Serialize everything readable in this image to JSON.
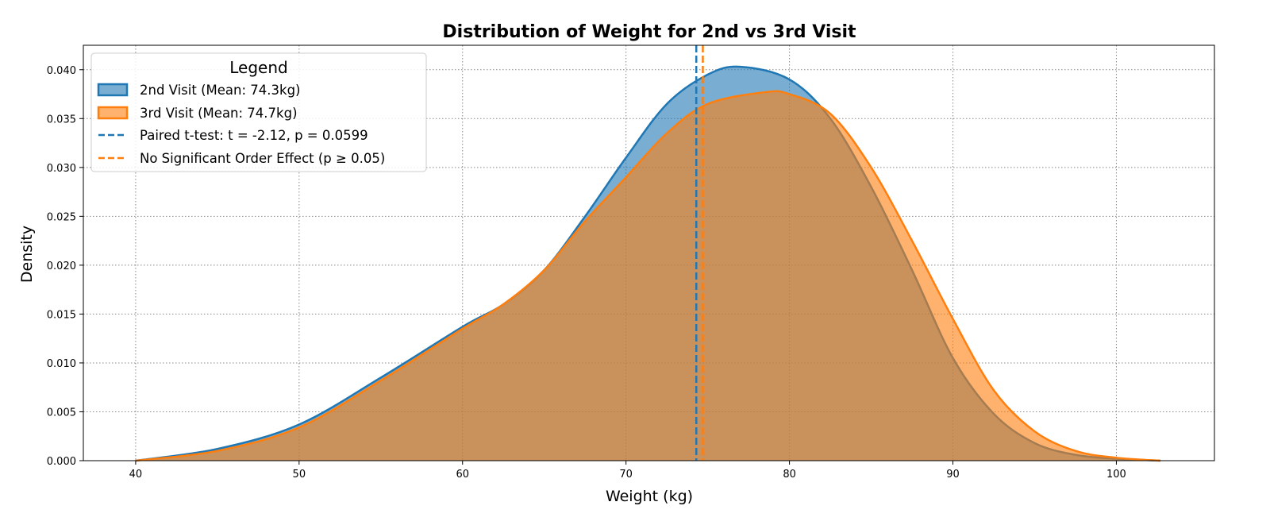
{
  "chart_data": {
    "type": "area",
    "title": "Distribution of Weight for 2nd vs 3rd Visit",
    "xlabel": "Weight (kg)",
    "ylabel": "Density",
    "xlim": [
      36.8,
      106
    ],
    "ylim": [
      0,
      0.0425
    ],
    "xticks": [
      "40",
      "50",
      "60",
      "70",
      "80",
      "90",
      "100"
    ],
    "xtick_values": [
      40,
      50,
      60,
      70,
      80,
      90,
      100
    ],
    "yticks": [
      "0.000",
      "0.005",
      "0.010",
      "0.015",
      "0.020",
      "0.025",
      "0.030",
      "0.035",
      "0.040"
    ],
    "ytick_values": [
      0,
      0.005,
      0.01,
      0.015,
      0.02,
      0.025,
      0.03,
      0.035,
      0.04
    ],
    "grid": true,
    "legend": {
      "title": "Legend",
      "placement": "top-left",
      "entries": [
        "2nd Visit (Mean: 74.3kg)",
        "3rd Visit (Mean: 74.7kg)",
        "Paired t-test: t = -2.12, p = 0.0599",
        "No Significant Order Effect (p ≥ 0.05)"
      ]
    },
    "series": [
      {
        "name": "2nd Visit (Mean: 74.3kg)",
        "color": "#1f77b4",
        "mean": 74.3,
        "x": [
          40,
          45,
          50,
          55,
          60,
          62.5,
          65,
          67.5,
          70,
          72.5,
          75,
          77,
          80,
          82.5,
          85,
          87.5,
          90,
          92.5,
          95,
          97.5,
          100,
          102.7
        ],
        "y": [
          0.0,
          0.0012,
          0.0037,
          0.0085,
          0.0137,
          0.016,
          0.0195,
          0.025,
          0.031,
          0.0365,
          0.0395,
          0.0403,
          0.039,
          0.035,
          0.028,
          0.0195,
          0.0105,
          0.0048,
          0.0018,
          0.0006,
          0.0002,
          0.0
        ]
      },
      {
        "name": "3rd Visit (Mean: 74.7kg)",
        "color": "#ff7f0e",
        "mean": 74.7,
        "x": [
          40,
          45,
          50,
          55,
          60,
          62.5,
          65,
          67.5,
          70,
          72.5,
          75,
          78.5,
          80,
          82.5,
          85,
          87.5,
          90,
          92.5,
          95,
          97.5,
          100,
          102.7
        ],
        "y": [
          0.0,
          0.001,
          0.0034,
          0.0082,
          0.0135,
          0.016,
          0.0195,
          0.0245,
          0.029,
          0.0335,
          0.0365,
          0.0377,
          0.0375,
          0.0355,
          0.03,
          0.0225,
          0.0145,
          0.0072,
          0.003,
          0.001,
          0.0003,
          0.0
        ]
      }
    ],
    "vlines": [
      {
        "x": 74.3,
        "color": "#1f77b4",
        "style": "dashed"
      },
      {
        "x": 74.7,
        "color": "#ff7f0e",
        "style": "dashed"
      }
    ]
  }
}
